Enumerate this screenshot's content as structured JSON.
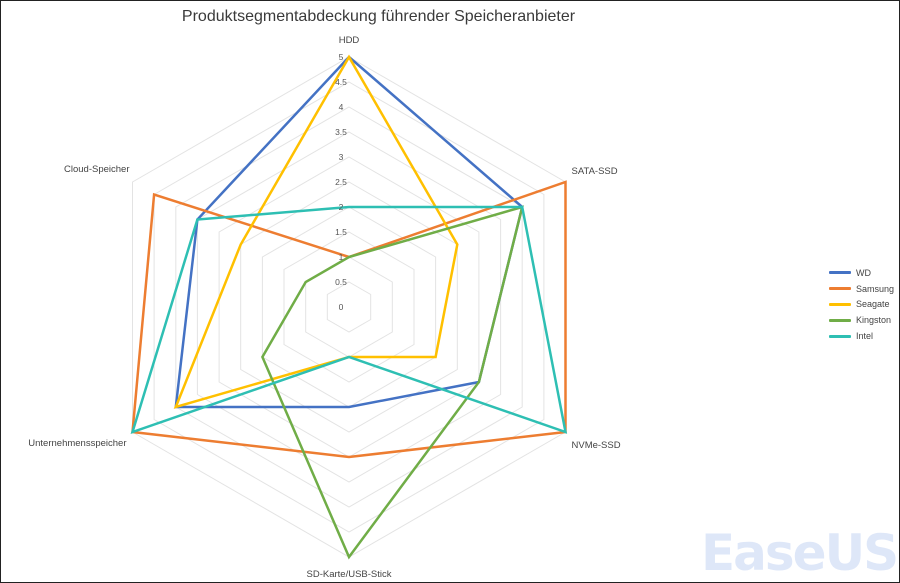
{
  "chart_data": {
    "type": "radar",
    "title": "Produktsegmentabdeckung führender Speicheranbieter",
    "axes": [
      "HDD",
      "SATA-SSD",
      "NVMe-SSD",
      "SD-Karte/USB-Stick",
      "Unternehmensspeicher",
      "Cloud-Speicher"
    ],
    "ticks": [
      "0",
      "0.5",
      "1",
      "1.5",
      "2",
      "2.5",
      "3",
      "3.5",
      "4",
      "4.5",
      "5"
    ],
    "range": [
      0,
      5
    ],
    "legend_position": "right",
    "series": [
      {
        "name": "WD",
        "color": "#4472C4",
        "values": [
          5,
          4,
          3,
          2,
          4,
          3.5
        ]
      },
      {
        "name": "Samsung",
        "color": "#ED7D31",
        "values": [
          1,
          5,
          5,
          3,
          5,
          4.5
        ]
      },
      {
        "name": "Seagate",
        "color": "#FFC000",
        "values": [
          5,
          2.5,
          2,
          1,
          4,
          2.5
        ]
      },
      {
        "name": "Kingston",
        "color": "#70AD47",
        "values": [
          1,
          4,
          3,
          5,
          2,
          1
        ]
      },
      {
        "name": "Intel",
        "color": "#2EBFB3",
        "values": [
          2,
          4,
          5,
          1,
          5,
          3.5
        ]
      }
    ]
  },
  "watermark": {
    "text": "EaseUS",
    "color": "#3b6fd8"
  }
}
